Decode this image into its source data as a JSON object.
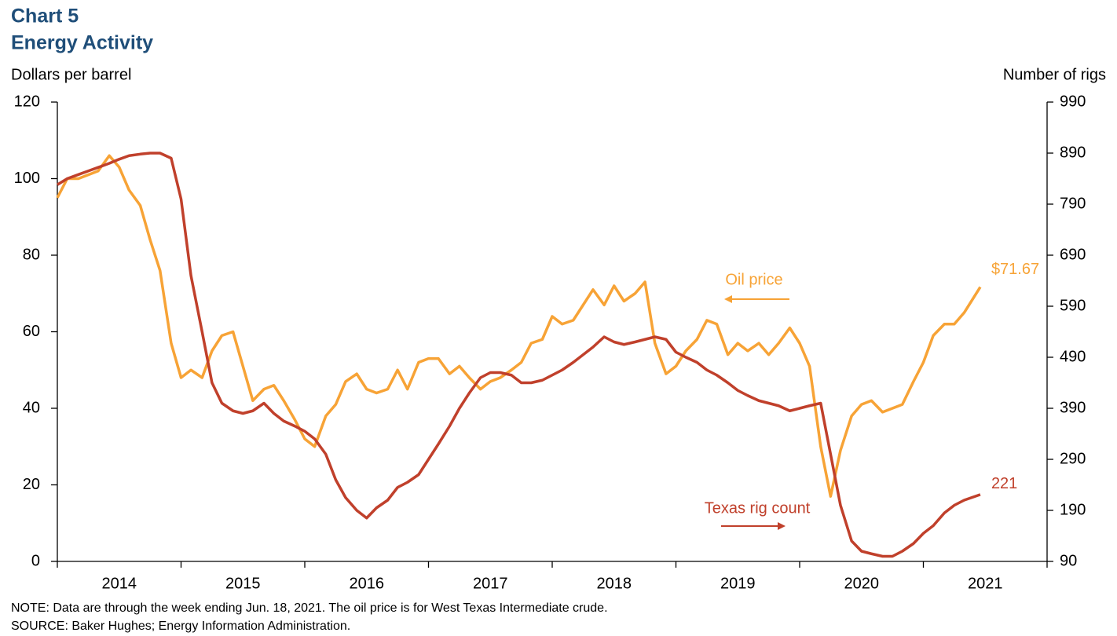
{
  "chart_data": {
    "type": "line",
    "title": "Chart 5",
    "subtitle": "Energy Activity",
    "y_label": "Dollars per barrel",
    "y2_label": "Number of rigs",
    "note": "NOTE: Data are through the week ending  Jun. 18, 2021. The oil price is for West Texas Intermediate crude.",
    "source": "SOURCE:  Baker Hughes;  Energy Information Administration.",
    "xlim": [
      2014,
      2022
    ],
    "xticks": [
      2014,
      2015,
      2016,
      2017,
      2018,
      2019,
      2020,
      2021,
      2022
    ],
    "year_labels": [
      2014,
      2015,
      2016,
      2017,
      2018,
      2019,
      2020,
      2021
    ],
    "ylim": [
      0,
      120
    ],
    "yticks": [
      0,
      20,
      40,
      60,
      80,
      100,
      120
    ],
    "y2lim": [
      90,
      990
    ],
    "y2ticks": [
      90,
      190,
      290,
      390,
      490,
      590,
      690,
      790,
      890,
      990
    ],
    "x": [
      2014.0,
      2014.08,
      2014.17,
      2014.25,
      2014.33,
      2014.42,
      2014.5,
      2014.58,
      2014.67,
      2014.75,
      2014.83,
      2014.92,
      2015.0,
      2015.08,
      2015.17,
      2015.25,
      2015.33,
      2015.42,
      2015.5,
      2015.58,
      2015.67,
      2015.75,
      2015.83,
      2015.92,
      2016.0,
      2016.08,
      2016.17,
      2016.25,
      2016.33,
      2016.42,
      2016.5,
      2016.58,
      2016.67,
      2016.75,
      2016.83,
      2016.92,
      2017.0,
      2017.08,
      2017.17,
      2017.25,
      2017.33,
      2017.42,
      2017.5,
      2017.58,
      2017.67,
      2017.75,
      2017.83,
      2017.92,
      2018.0,
      2018.08,
      2018.17,
      2018.25,
      2018.33,
      2018.42,
      2018.5,
      2018.58,
      2018.67,
      2018.75,
      2018.83,
      2018.92,
      2019.0,
      2019.08,
      2019.17,
      2019.25,
      2019.33,
      2019.42,
      2019.5,
      2019.58,
      2019.67,
      2019.75,
      2019.83,
      2019.92,
      2020.0,
      2020.08,
      2020.17,
      2020.25,
      2020.33,
      2020.42,
      2020.5,
      2020.58,
      2020.67,
      2020.75,
      2020.83,
      2020.92,
      2021.0,
      2021.08,
      2021.17,
      2021.25,
      2021.33,
      2021.46
    ],
    "series": [
      {
        "name": "Oil price",
        "color": "#f7a336",
        "axis": "y",
        "values": [
          95,
          100,
          100,
          101,
          102,
          106,
          103,
          97,
          93,
          84,
          76,
          57,
          48,
          50,
          48,
          55,
          59,
          60,
          51,
          42,
          45,
          46,
          42,
          37,
          32,
          30,
          38,
          41,
          47,
          49,
          45,
          44,
          45,
          50,
          45,
          52,
          53,
          53,
          49,
          51,
          48,
          45,
          47,
          48,
          50,
          52,
          57,
          58,
          64,
          62,
          63,
          67,
          71,
          67,
          72,
          68,
          70,
          73,
          57,
          49,
          51,
          55,
          58,
          63,
          62,
          54,
          57,
          55,
          57,
          54,
          57,
          61,
          57,
          51,
          30,
          17,
          29,
          38,
          41,
          42,
          39,
          40,
          41,
          47,
          52,
          59,
          62,
          62,
          65,
          71.67
        ],
        "value_labels": [
          null,
          null,
          null,
          null,
          null,
          null,
          null,
          null,
          null,
          null,
          null,
          null,
          null,
          null,
          null,
          null,
          null,
          null,
          null,
          null,
          null,
          null,
          null,
          null,
          null,
          null,
          null,
          null,
          null,
          null,
          null,
          null,
          null,
          null,
          null,
          null,
          null,
          null,
          null,
          null,
          null,
          null,
          null,
          null,
          null,
          null,
          null,
          null,
          null,
          null,
          null,
          null,
          null,
          null,
          null,
          null,
          null,
          null,
          null,
          null,
          null,
          null,
          null,
          null,
          null,
          null,
          null,
          null,
          null,
          null,
          null,
          null,
          null,
          null,
          null,
          null,
          null,
          null,
          null,
          null,
          null,
          null,
          null,
          null,
          null,
          null,
          null,
          null,
          null,
          "$71.67"
        ]
      },
      {
        "name": "Texas rig count",
        "color": "#c0402b",
        "axis": "y2",
        "values": [
          828,
          840,
          848,
          855,
          862,
          870,
          878,
          885,
          888,
          890,
          890,
          880,
          800,
          650,
          540,
          440,
          400,
          385,
          380,
          385,
          400,
          380,
          365,
          355,
          345,
          330,
          300,
          250,
          215,
          190,
          175,
          195,
          210,
          235,
          245,
          260,
          290,
          320,
          355,
          390,
          420,
          450,
          460,
          460,
          455,
          440,
          440,
          445,
          455,
          465,
          480,
          495,
          510,
          530,
          520,
          515,
          520,
          525,
          530,
          525,
          500,
          490,
          480,
          465,
          455,
          440,
          425,
          415,
          405,
          400,
          395,
          385,
          390,
          395,
          400,
          300,
          200,
          130,
          110,
          105,
          100,
          100,
          110,
          125,
          145,
          160,
          185,
          200,
          210,
          221
        ]
      }
    ]
  }
}
